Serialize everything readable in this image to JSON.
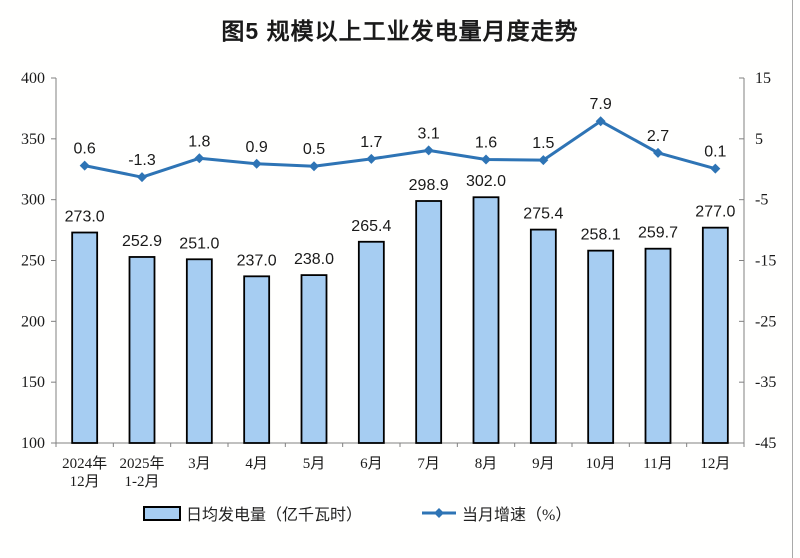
{
  "chart_data": {
    "type": "combo",
    "title": "图5 规模以上工业发电量月度走势",
    "categories": [
      "2024年\n12月",
      "2025年\n1-2月",
      "3月",
      "4月",
      "5月",
      "6月",
      "7月",
      "8月",
      "9月",
      "10月",
      "11月",
      "12月"
    ],
    "series": [
      {
        "name": "日均发电量（亿千瓦时）",
        "type": "bar",
        "axis": "left",
        "values": [
          273.0,
          252.9,
          251.0,
          237.0,
          238.0,
          265.4,
          298.9,
          302.0,
          275.4,
          258.1,
          259.7,
          277.0
        ]
      },
      {
        "name": "当月增速（%）",
        "type": "line",
        "axis": "right",
        "values": [
          0.6,
          -1.3,
          1.8,
          0.9,
          0.5,
          1.7,
          3.1,
          1.6,
          1.5,
          7.9,
          2.7,
          0.1
        ]
      }
    ],
    "left_axis": {
      "min": 100,
      "max": 400,
      "tick_step": 50,
      "ticks": [
        400,
        350,
        300,
        250,
        200,
        150,
        100
      ]
    },
    "right_axis": {
      "min": -45,
      "max": 15,
      "tick_step": 10,
      "ticks": [
        15,
        5,
        -5,
        -15,
        -25,
        -35,
        -45
      ]
    },
    "grid": false,
    "legend_position": "bottom",
    "colors": {
      "bar_fill": "#A6CDF2",
      "bar_border": "#000000",
      "line": "#2E74B5",
      "axis": "#808080",
      "label_text": "#1a1a1a",
      "page_border": "#a9a9a9"
    }
  }
}
